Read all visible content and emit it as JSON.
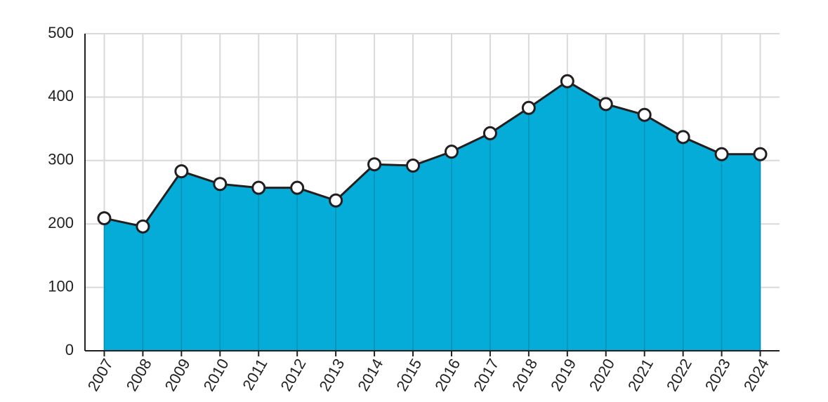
{
  "chart_data": {
    "type": "area",
    "categories": [
      "2007",
      "2008",
      "2009",
      "2010",
      "2011",
      "2012",
      "2013",
      "2014",
      "2015",
      "2016",
      "2017",
      "2018",
      "2019",
      "2020",
      "2021",
      "2022",
      "2023",
      "2024"
    ],
    "values": [
      209,
      196,
      283,
      263,
      257,
      257,
      237,
      294,
      292,
      314,
      343,
      383,
      425,
      389,
      372,
      337,
      310,
      310
    ],
    "color": "#00aad6",
    "line_color": "#231f20",
    "ylim": [
      0,
      500
    ],
    "yticks": [
      0,
      100,
      200,
      300,
      400,
      500
    ],
    "grid": true
  }
}
